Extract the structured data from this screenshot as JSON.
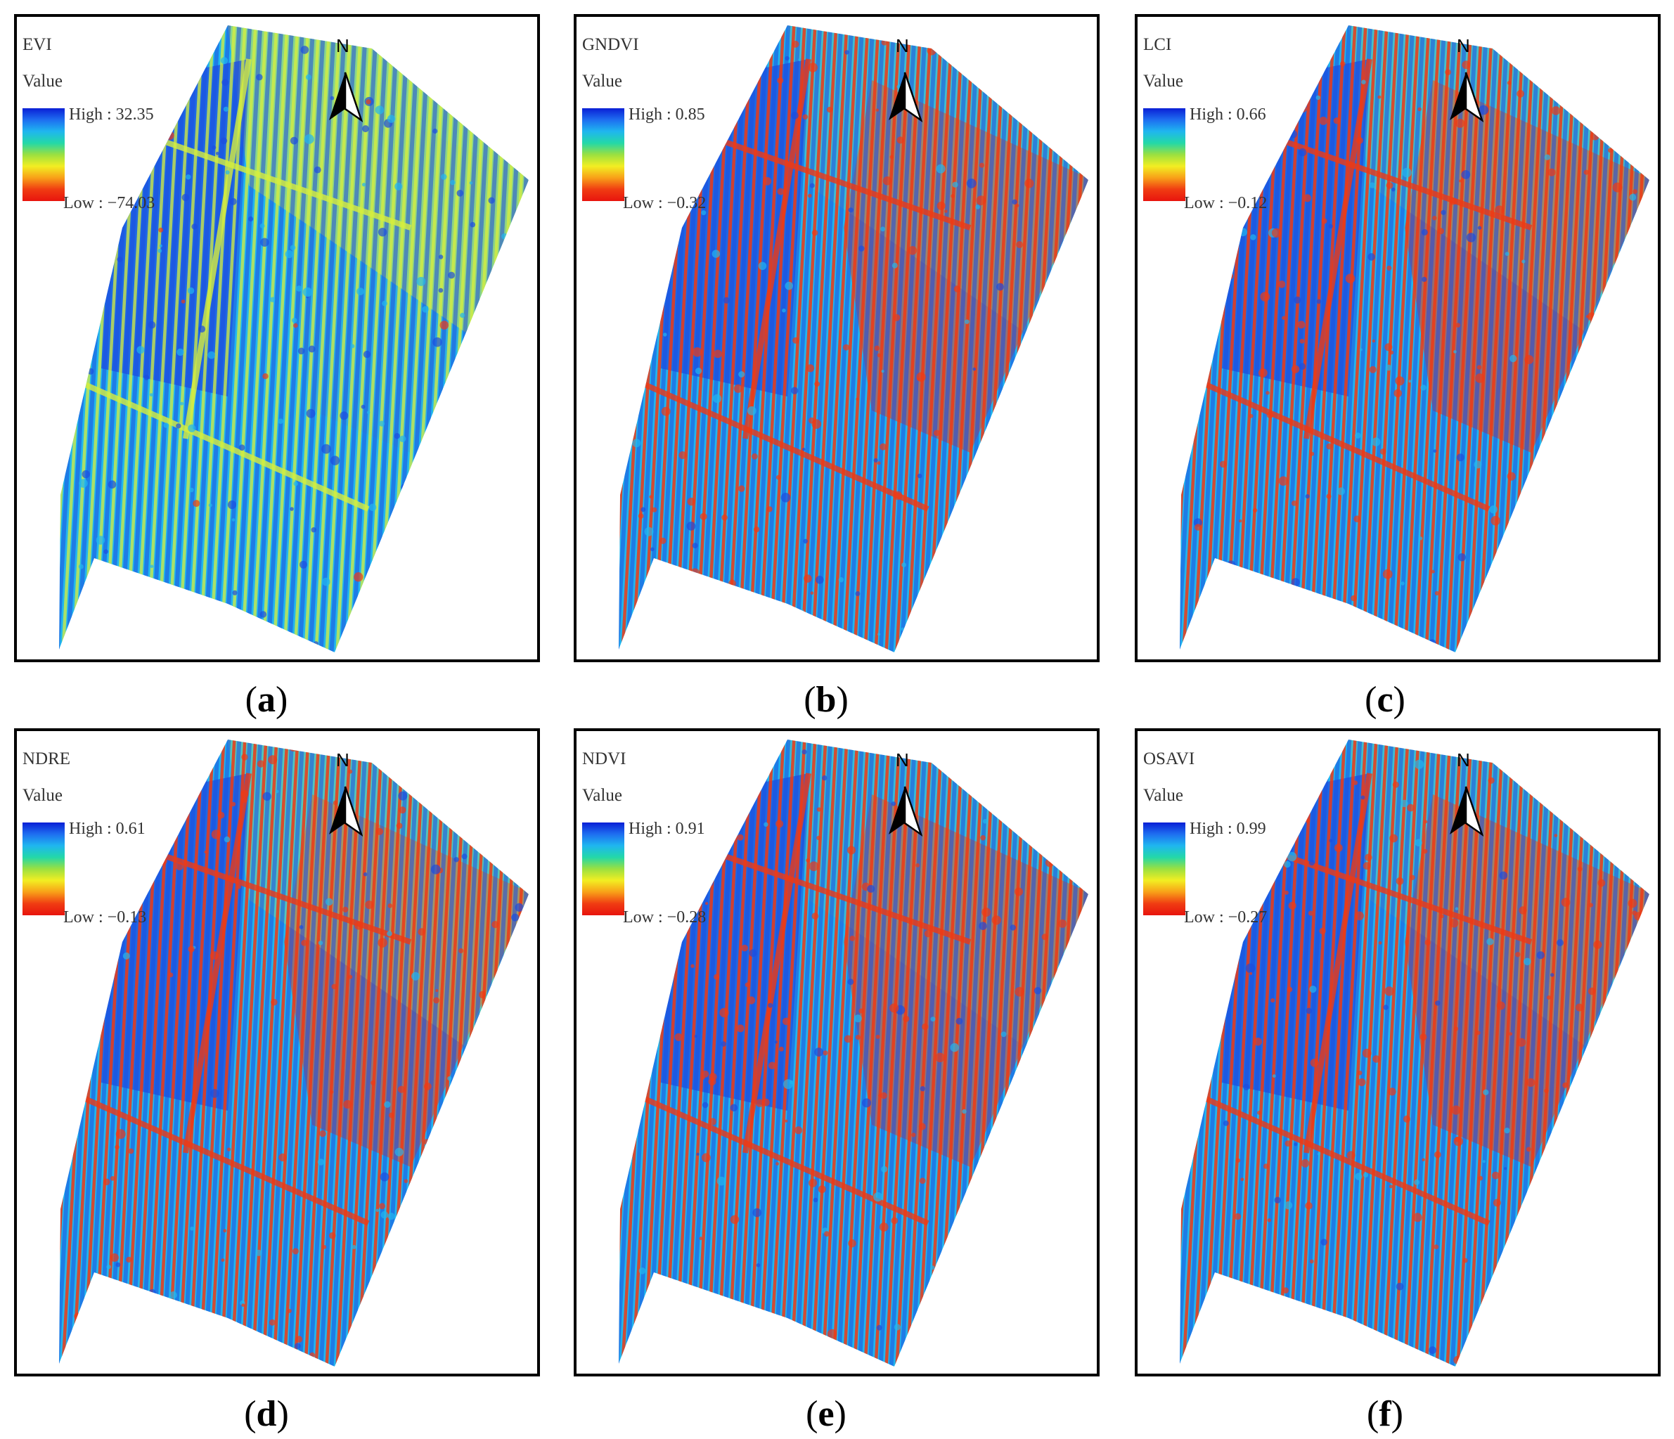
{
  "legend": {
    "title": "Value"
  },
  "colors": {
    "ramp": [
      "#0a1fd6",
      "#1e6ef0",
      "#1fb6ef",
      "#23d8a8",
      "#9be040",
      "#f2ee22",
      "#f8a018",
      "#f03c12",
      "#e8140e"
    ],
    "high": "#1d4de0",
    "mid": "#22b6ee",
    "low": "#ef3a14",
    "yellow": "#d8ef3c"
  },
  "panels": [
    {
      "id": "a",
      "index": "EVI",
      "high": "High : 32.35",
      "low": "Low : −74.03",
      "caption_letter": "a",
      "red_level": 0.05,
      "yellow_level": 0.7
    },
    {
      "id": "b",
      "index": "GNDVI",
      "high": "High : 0.85",
      "low": "Low : −0.32",
      "caption_letter": "b",
      "red_level": 0.55,
      "yellow_level": 0.2
    },
    {
      "id": "c",
      "index": "LCI",
      "high": "High : 0.66",
      "low": "Low : −0.12",
      "caption_letter": "c",
      "red_level": 0.6,
      "yellow_level": 0.25
    },
    {
      "id": "d",
      "index": "NDRE",
      "high": "High : 0.61",
      "low": "Low : −0.13",
      "caption_letter": "d",
      "red_level": 0.55,
      "yellow_level": 0.35
    },
    {
      "id": "e",
      "index": "NDVI",
      "high": "High : 0.91",
      "low": "Low : −0.28",
      "caption_letter": "e",
      "red_level": 0.55,
      "yellow_level": 0.15
    },
    {
      "id": "f",
      "index": "OSAVI",
      "high": "High : 0.99",
      "low": "Low : −0.27",
      "caption_letter": "f",
      "red_level": 0.6,
      "yellow_level": 0.2
    }
  ],
  "north_arrow": {
    "letter": "N"
  },
  "caption_format": {
    "open": "(",
    "close": ")"
  }
}
